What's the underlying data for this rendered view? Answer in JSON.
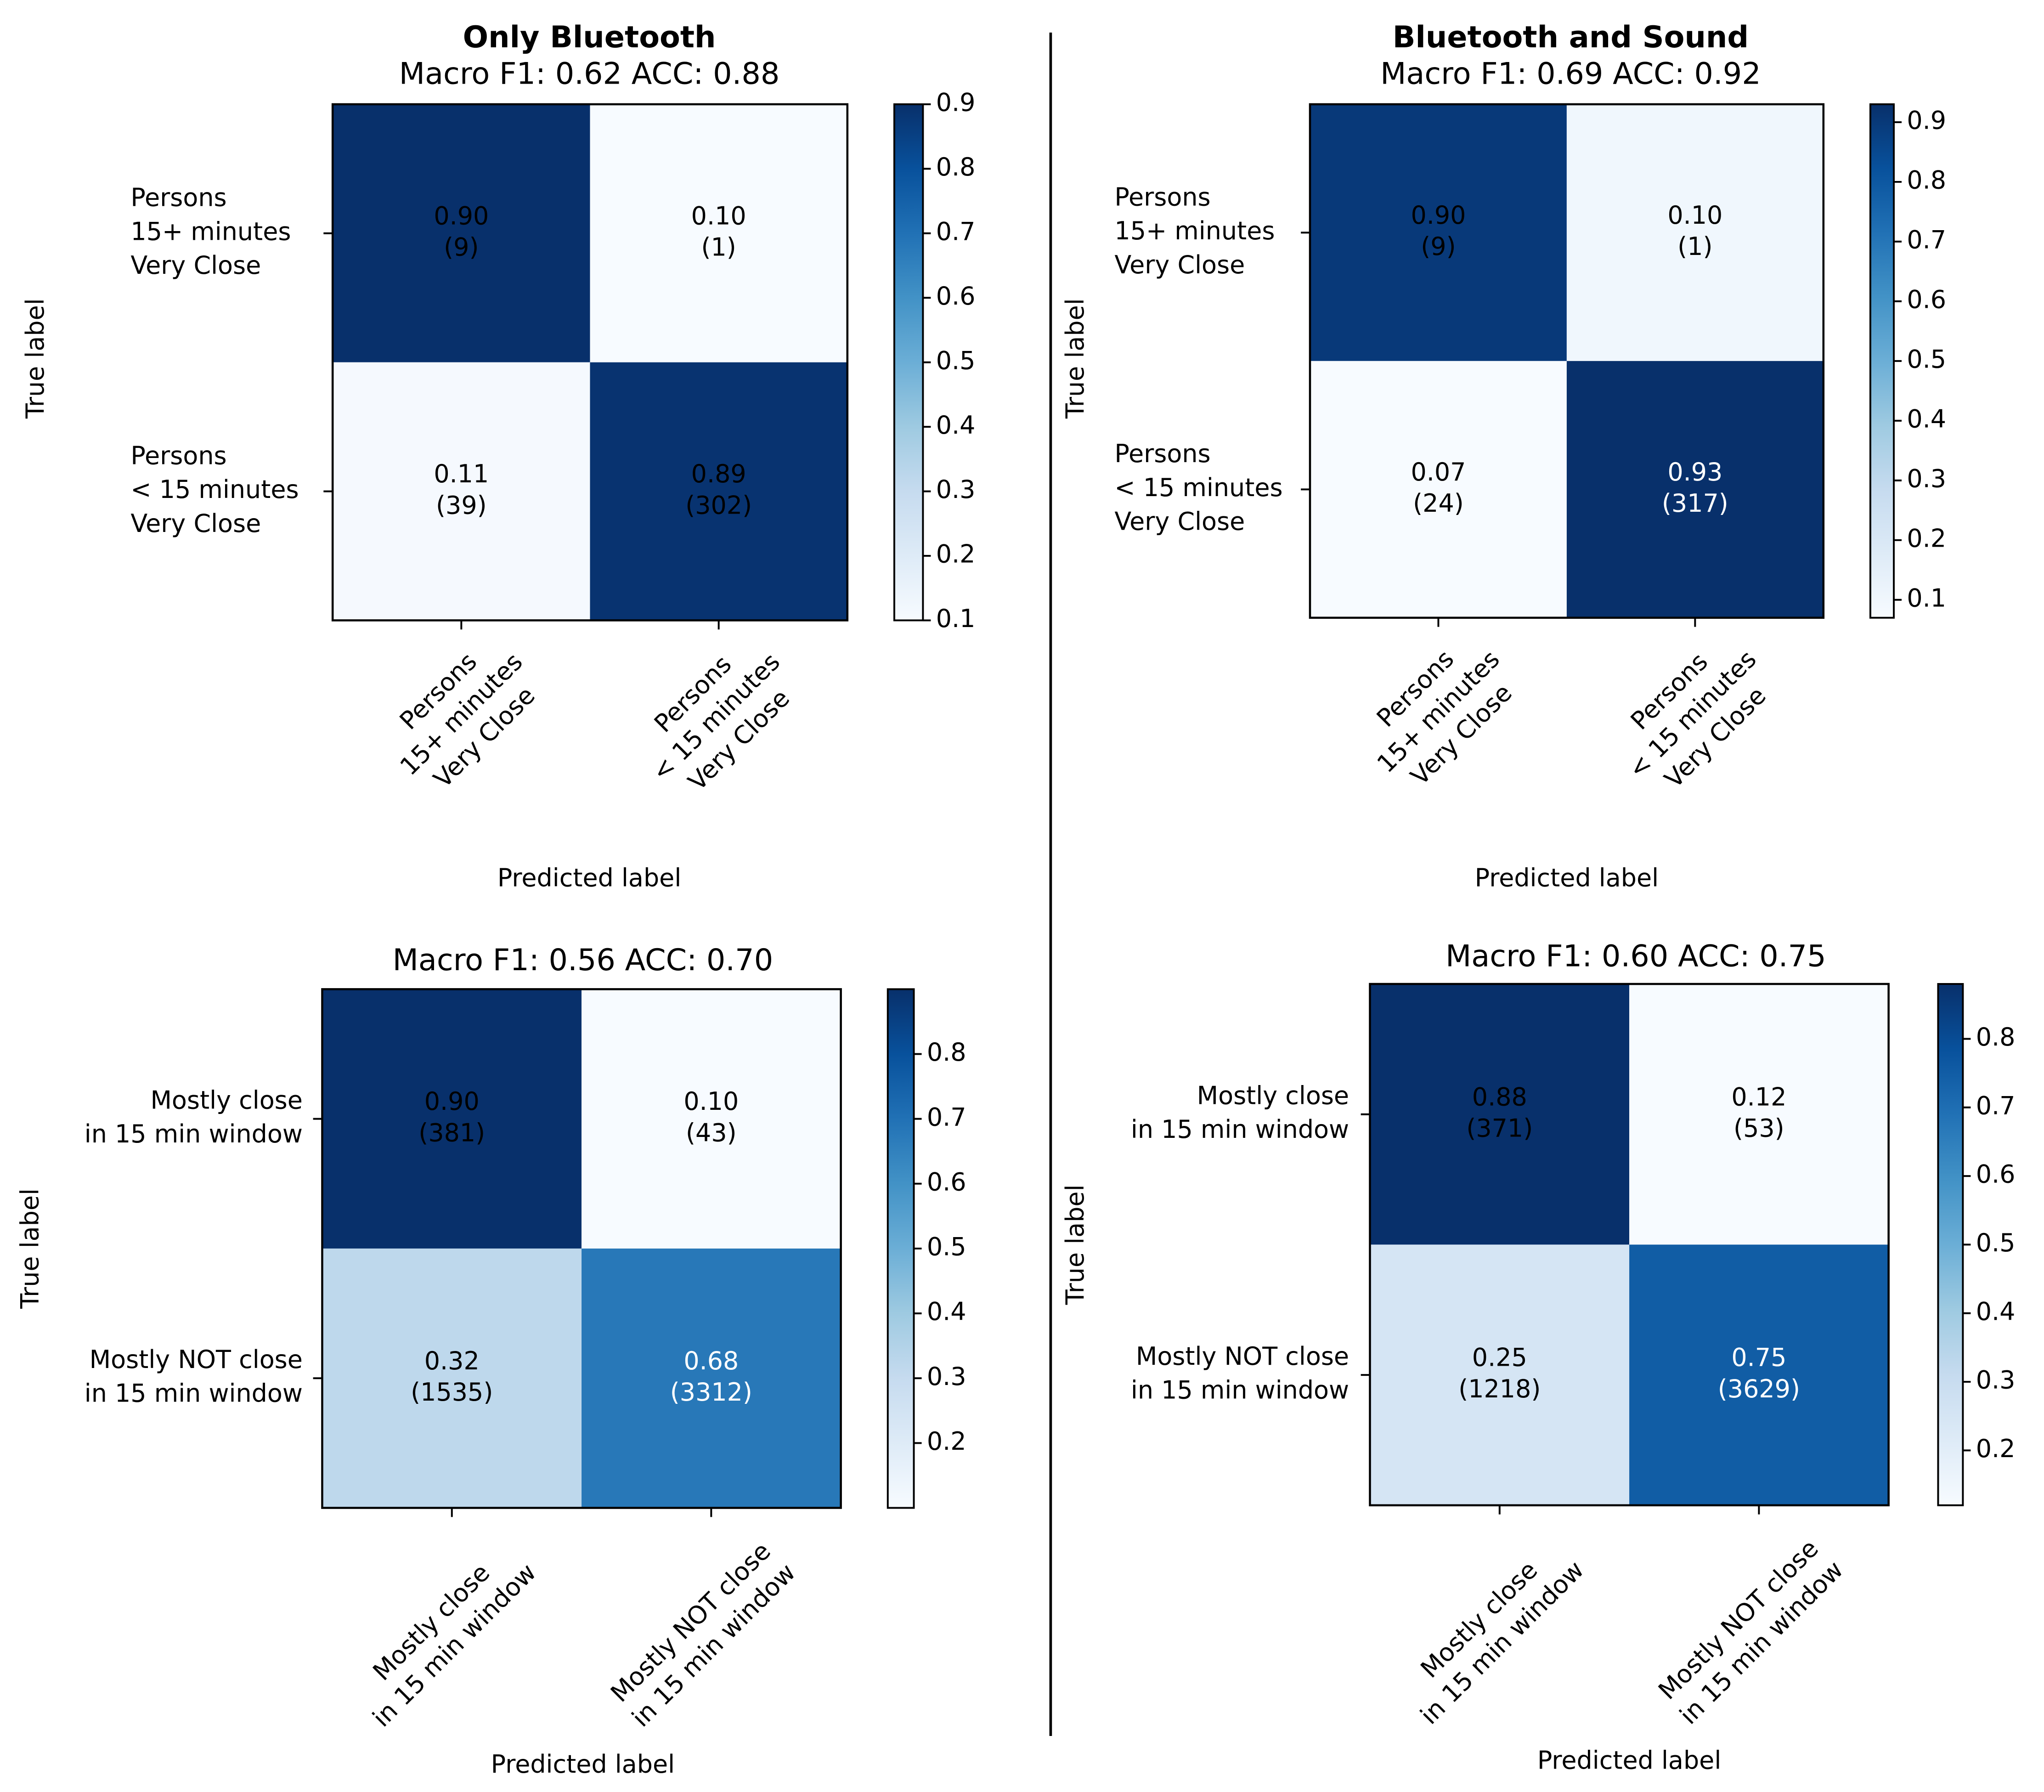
{
  "chart_data": [
    {
      "type": "heatmap",
      "title": "Only Bluetooth",
      "subtitle": "Macro F1: 0.62 ACC: 0.88",
      "x_label": "Predicted label",
      "y_label": "True label",
      "x_categories": [
        [
          "Persons",
          "15+ minutes",
          "Very Close"
        ],
        [
          "Persons",
          "< 15 minutes",
          "Very Close"
        ]
      ],
      "y_categories": [
        [
          "Persons",
          "15+ minutes",
          "Very Close"
        ],
        [
          "Persons",
          "< 15 minutes",
          "Very Close"
        ]
      ],
      "values": [
        [
          0.9,
          0.1
        ],
        [
          0.11,
          0.89
        ]
      ],
      "value_labels": [
        [
          "0.90",
          "0.10"
        ],
        [
          "0.11",
          "0.89"
        ]
      ],
      "counts": [
        [
          9,
          1
        ],
        [
          39,
          302
        ]
      ],
      "count_labels": [
        [
          "(9)",
          "(1)"
        ],
        [
          "(39)",
          "(302)"
        ]
      ],
      "label_colors": [
        [
          "#000000",
          "#000000"
        ],
        [
          "#000000",
          "#000000"
        ]
      ],
      "colormap": "Blues",
      "clim": [
        0.1,
        0.9
      ],
      "cticks": [
        0.1,
        0.2,
        0.3,
        0.4,
        0.5,
        0.6,
        0.7,
        0.8,
        0.9
      ]
    },
    {
      "type": "heatmap",
      "title": "Bluetooth and Sound",
      "subtitle": "Macro F1: 0.69 ACC: 0.92",
      "x_label": "Predicted label",
      "y_label": "True label",
      "x_categories": [
        [
          "Persons",
          "15+ minutes",
          "Very Close"
        ],
        [
          "Persons",
          "< 15 minutes",
          "Very Close"
        ]
      ],
      "y_categories": [
        [
          "Persons",
          "15+ minutes",
          "Very Close"
        ],
        [
          "Persons",
          "< 15 minutes",
          "Very Close"
        ]
      ],
      "values": [
        [
          0.9,
          0.1
        ],
        [
          0.07,
          0.93
        ]
      ],
      "value_labels": [
        [
          "0.90",
          "0.10"
        ],
        [
          "0.07",
          "0.93"
        ]
      ],
      "counts": [
        [
          9,
          1
        ],
        [
          24,
          317
        ]
      ],
      "count_labels": [
        [
          "(9)",
          "(1)"
        ],
        [
          "(24)",
          "(317)"
        ]
      ],
      "label_colors": [
        [
          "#000000",
          "#000000"
        ],
        [
          "#000000",
          "#ffffff"
        ]
      ],
      "colormap": "Blues",
      "clim": [
        0.07,
        0.93
      ],
      "cticks": [
        0.1,
        0.2,
        0.3,
        0.4,
        0.5,
        0.6,
        0.7,
        0.8,
        0.9
      ]
    },
    {
      "type": "heatmap",
      "title": "Macro F1: 0.56 ACC: 0.70",
      "x_label": "Predicted label",
      "y_label": "True label",
      "x_categories": [
        [
          "Mostly close",
          "in 15 min window"
        ],
        [
          "Mostly NOT close",
          "in 15 min window"
        ]
      ],
      "y_categories": [
        [
          "Mostly close",
          "in 15 min window"
        ],
        [
          "Mostly NOT close",
          "in 15 min window"
        ]
      ],
      "values": [
        [
          0.9,
          0.1
        ],
        [
          0.32,
          0.68
        ]
      ],
      "value_labels": [
        [
          "0.90",
          "0.10"
        ],
        [
          "0.32",
          "0.68"
        ]
      ],
      "counts": [
        [
          381,
          43
        ],
        [
          1535,
          3312
        ]
      ],
      "count_labels": [
        [
          "(381)",
          "(43)"
        ],
        [
          "(1535)",
          "(3312)"
        ]
      ],
      "label_colors": [
        [
          "#000000",
          "#000000"
        ],
        [
          "#000000",
          "#ffffff"
        ]
      ],
      "colormap": "Blues",
      "clim": [
        0.1,
        0.9
      ],
      "cticks": [
        0.2,
        0.3,
        0.4,
        0.5,
        0.6,
        0.7,
        0.8
      ]
    },
    {
      "type": "heatmap",
      "title": "Macro F1: 0.60 ACC: 0.75",
      "x_label": "Predicted label",
      "y_label": "True label",
      "x_categories": [
        [
          "Mostly close",
          "in 15 min window"
        ],
        [
          "Mostly NOT close",
          "in 15 min window"
        ]
      ],
      "y_categories": [
        [
          "Mostly close",
          "in 15 min window"
        ],
        [
          "Mostly NOT close",
          "in 15 min window"
        ]
      ],
      "values": [
        [
          0.88,
          0.12
        ],
        [
          0.25,
          0.75
        ]
      ],
      "value_labels": [
        [
          "0.88",
          "0.12"
        ],
        [
          "0.25",
          "0.75"
        ]
      ],
      "counts": [
        [
          371,
          53
        ],
        [
          1218,
          3629
        ]
      ],
      "count_labels": [
        [
          "(371)",
          "(53)"
        ],
        [
          "(1218)",
          "(3629)"
        ]
      ],
      "label_colors": [
        [
          "#000000",
          "#000000"
        ],
        [
          "#000000",
          "#ffffff"
        ]
      ],
      "colormap": "Blues",
      "clim": [
        0.12,
        0.88
      ],
      "cticks": [
        0.2,
        0.3,
        0.4,
        0.5,
        0.6,
        0.7,
        0.8
      ]
    }
  ]
}
